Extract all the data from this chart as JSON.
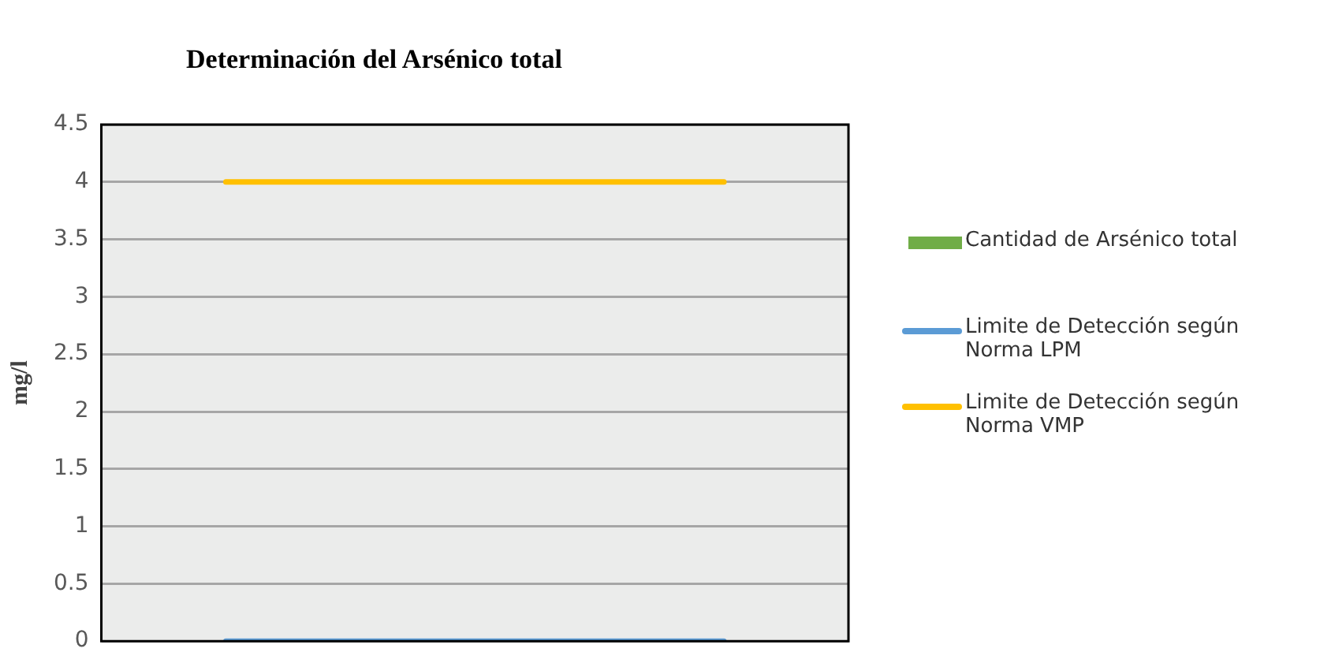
{
  "chart_data": {
    "type": "bar",
    "title": "Determinación del Arsénico total",
    "ylabel": "mg/l",
    "categories": [
      null,
      null,
      null
    ],
    "series": [
      {
        "name": "Cantidad de Arsénico total",
        "color": "#70ad47",
        "values": [
          0,
          0,
          0
        ]
      },
      {
        "name": "Limite de Detección según Norma LPM",
        "type": "line",
        "color": "#5b9bd5",
        "values": [
          0,
          0,
          0
        ]
      },
      {
        "name": "Limite de Detección según Norma VMP",
        "type": "line",
        "color": "#ffc000",
        "values": [
          4,
          4,
          4
        ]
      }
    ],
    "ylim": [
      0,
      4.5
    ],
    "yticks": [
      0,
      0.5,
      1,
      1.5,
      2,
      2.5,
      3,
      3.5,
      4,
      4.5
    ],
    "grid": "y",
    "legend": "right",
    "marker": "none",
    "tick_labels": "y"
  }
}
